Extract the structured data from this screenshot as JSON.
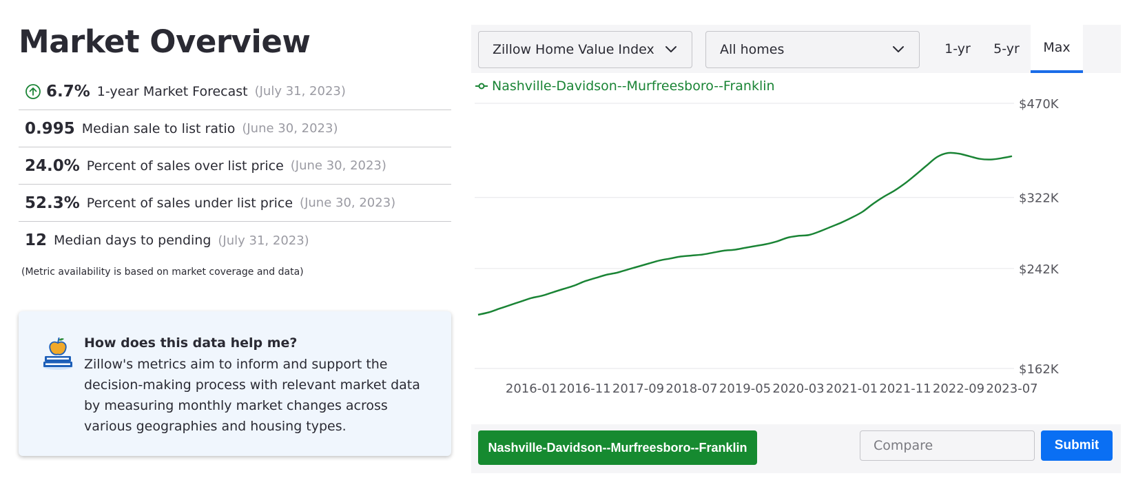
{
  "page": {
    "title": "Market Overview"
  },
  "metrics": [
    {
      "value": "6.7%",
      "label": "1-year Market Forecast",
      "date": "(July 31, 2023)",
      "icon": "arrow-up-circle-icon"
    },
    {
      "value": "0.995",
      "label": "Median sale to list ratio",
      "date": "(June 30, 2023)"
    },
    {
      "value": "24.0%",
      "label": "Percent of sales over list price",
      "date": "(June 30, 2023)"
    },
    {
      "value": "52.3%",
      "label": "Percent of sales under list price",
      "date": "(June 30, 2023)"
    },
    {
      "value": "12",
      "label": "Median days to pending",
      "date": "(July 31, 2023)"
    }
  ],
  "footnote": "(Metric availability is based on market coverage and data)",
  "help": {
    "icon": "apple-on-books-icon",
    "title": "How does this data help me?",
    "body": "Zillow's metrics aim to inform and support the decision-making process with relevant market data by measuring monthly market changes across various geographies and housing types."
  },
  "controls": {
    "metric_select": "Zillow Home Value Index",
    "home_type_select": "All homes",
    "ranges": [
      "1-yr",
      "5-yr",
      "Max"
    ],
    "active_range": "Max"
  },
  "bottom": {
    "region": "Nashville-Davidson--Murfreesboro--Franklin",
    "compare_placeholder": "Compare",
    "submit_label": "Submit"
  },
  "colors": {
    "series": "#1a8435",
    "accent": "#0a6ff3",
    "region_chip": "#168a30"
  },
  "chart_data": {
    "type": "line",
    "series": [
      {
        "name": "Nashville-Davidson--Murfreesboro--Franklin",
        "x": [
          "2015-03",
          "2015-05",
          "2015-07",
          "2015-09",
          "2015-11",
          "2016-01",
          "2016-03",
          "2016-05",
          "2016-07",
          "2016-09",
          "2016-11",
          "2017-01",
          "2017-03",
          "2017-05",
          "2017-07",
          "2017-09",
          "2017-11",
          "2018-01",
          "2018-03",
          "2018-05",
          "2018-07",
          "2018-09",
          "2018-11",
          "2019-01",
          "2019-03",
          "2019-05",
          "2019-07",
          "2019-09",
          "2019-11",
          "2020-01",
          "2020-03",
          "2020-05",
          "2020-07",
          "2020-09",
          "2020-11",
          "2021-01",
          "2021-03",
          "2021-05",
          "2021-07",
          "2021-09",
          "2021-11",
          "2022-01",
          "2022-03",
          "2022-05",
          "2022-07",
          "2022-09",
          "2022-11",
          "2023-01",
          "2023-03",
          "2023-05",
          "2023-07"
        ],
        "values": [
          201,
          203,
          206,
          209,
          212,
          215,
          217,
          220,
          223,
          226,
          230,
          233,
          236,
          238,
          241,
          244,
          247,
          250,
          252,
          254,
          255,
          256,
          258,
          260,
          261,
          263,
          265,
          267,
          270,
          274,
          276,
          277,
          281,
          286,
          291,
          297,
          304,
          314,
          323,
          331,
          341,
          353,
          366,
          379,
          385,
          384,
          380,
          376,
          375,
          377,
          380
        ]
      }
    ],
    "xticks": [
      "2016-01",
      "2016-11",
      "2017-09",
      "2018-07",
      "2019-05",
      "2020-03",
      "2021-01",
      "2021-11",
      "2022-09",
      "2023-07"
    ],
    "yticks": [
      {
        "value": 162,
        "label": "$162K"
      },
      {
        "value": 242,
        "label": "$242K"
      },
      {
        "value": 322,
        "label": "$322K"
      },
      {
        "value": 470,
        "label": "$470K"
      }
    ],
    "y_scale": "log",
    "grid": "horizontal",
    "legend_position": "top-left"
  }
}
